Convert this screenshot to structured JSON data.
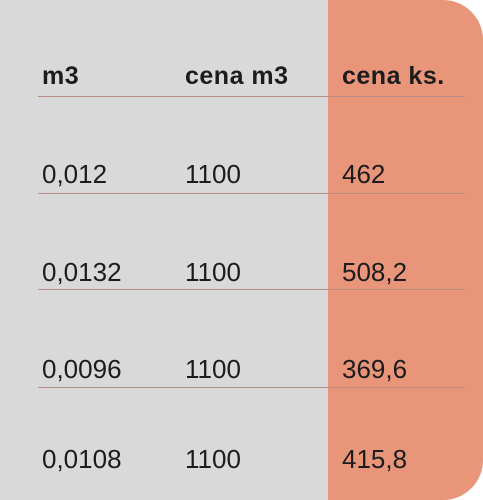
{
  "table": {
    "headers": [
      "m3",
      "cena m3",
      "cena ks."
    ],
    "rows": [
      [
        "0,012",
        "1100",
        "462"
      ],
      [
        "0,0132",
        "1100",
        "508,2"
      ],
      [
        "0,0096",
        "1100",
        "369,6"
      ],
      [
        "0,0108",
        "1100",
        "415,8"
      ]
    ]
  },
  "colors": {
    "background": "#d9d9d9",
    "highlight_column": "#e8957a",
    "text": "#1c1c1c",
    "divider": "#b88f88"
  }
}
